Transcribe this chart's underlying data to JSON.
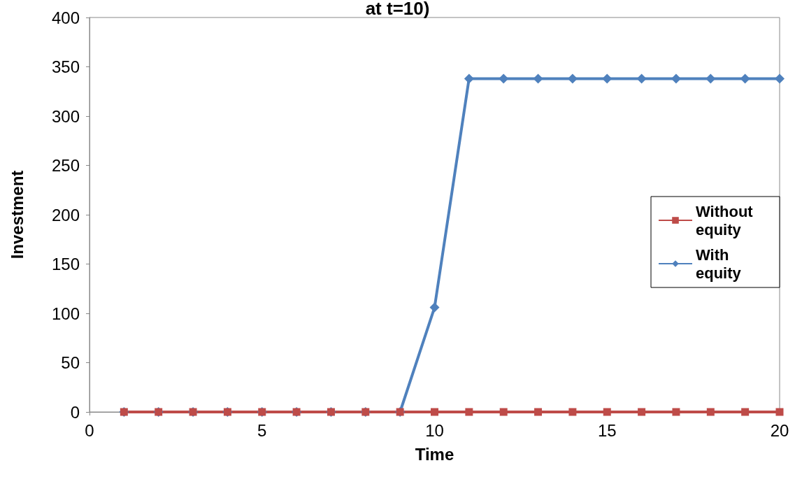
{
  "chart_data": {
    "type": "line",
    "title": "at t=10)",
    "xlabel": "Time",
    "ylabel": "Investment",
    "x": [
      1,
      2,
      3,
      4,
      5,
      6,
      7,
      8,
      9,
      10,
      11,
      12,
      13,
      14,
      15,
      16,
      17,
      18,
      19,
      20
    ],
    "series": [
      {
        "name": "Without equity",
        "color": "#be4b48",
        "marker": "square",
        "values": [
          0,
          0,
          0,
          0,
          0,
          0,
          0,
          0,
          0,
          0,
          0,
          0,
          0,
          0,
          0,
          0,
          0,
          0,
          0,
          0
        ]
      },
      {
        "name": "With equity",
        "color": "#4f81bd",
        "marker": "diamond",
        "values": [
          0,
          0,
          0,
          0,
          0,
          0,
          0,
          0,
          0,
          106,
          338,
          338,
          338,
          338,
          338,
          338,
          338,
          338,
          338,
          338
        ]
      }
    ],
    "xlim": [
      0,
      20
    ],
    "xticks": [
      0,
      5,
      10,
      15,
      20
    ],
    "ylim": [
      0,
      400
    ],
    "yticks": [
      0,
      50,
      100,
      150,
      200,
      250,
      300,
      350,
      400
    ],
    "grid": false,
    "legend": "right",
    "line_style": "solid"
  }
}
